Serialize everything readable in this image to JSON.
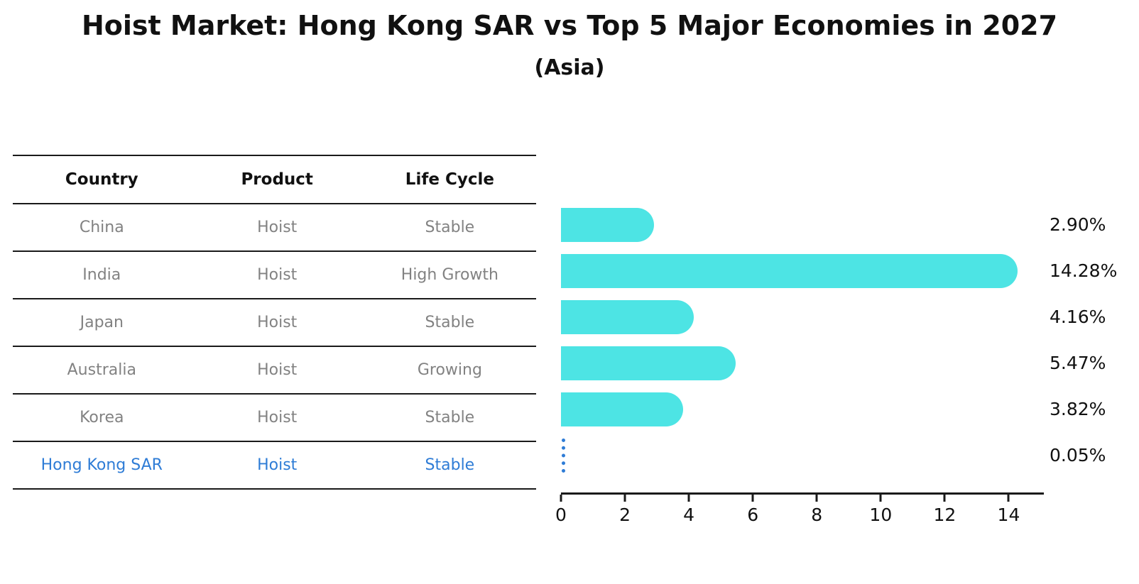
{
  "header": {
    "title": "Hoist Market: Hong Kong SAR vs Top 5 Major Economies in 2027",
    "subtitle": "(Asia)"
  },
  "table": {
    "columns": [
      "Country",
      "Product",
      "Life Cycle"
    ],
    "rows": [
      {
        "country": "China",
        "product": "Hoist",
        "life_cycle": "Stable",
        "highlight": false
      },
      {
        "country": "India",
        "product": "Hoist",
        "life_cycle": "High Growth",
        "highlight": false
      },
      {
        "country": "Japan",
        "product": "Hoist",
        "life_cycle": "Stable",
        "highlight": false
      },
      {
        "country": "Australia",
        "product": "Hoist",
        "life_cycle": "Growing",
        "highlight": false
      },
      {
        "country": "Korea",
        "product": "Hoist",
        "life_cycle": "Stable",
        "highlight": false
      },
      {
        "country": "Hong Kong SAR",
        "product": "Hoist",
        "life_cycle": "Stable",
        "highlight": true
      }
    ]
  },
  "chart_data": {
    "type": "bar",
    "orientation": "horizontal",
    "title": "Hoist Market: Hong Kong SAR vs Top 5 Major Economies in 2027",
    "subtitle": "(Asia)",
    "categories": [
      "China",
      "India",
      "Japan",
      "Australia",
      "Korea",
      "Hong Kong SAR"
    ],
    "values": [
      2.9,
      14.28,
      4.16,
      5.47,
      3.82,
      0.05
    ],
    "value_labels": [
      "2.90%",
      "14.28%",
      "4.16%",
      "5.47%",
      "3.82%",
      "0.05%"
    ],
    "xlabel": "",
    "ylabel": "",
    "xlim": [
      0,
      15.1
    ],
    "x_ticks": [
      0,
      2,
      4,
      6,
      8,
      10,
      12,
      14
    ],
    "grid": false,
    "legend": false,
    "bar_color": "#4DE4E4",
    "highlight_color": "#2E7CD6",
    "highlight_bar_style": "dotted-vertical-line"
  },
  "colors": {
    "bar": "#4DE4E4",
    "highlight_blue": "#2E7CD6",
    "table_body_text": "#828282",
    "text": "#111111",
    "line": "#1a1a1a"
  }
}
